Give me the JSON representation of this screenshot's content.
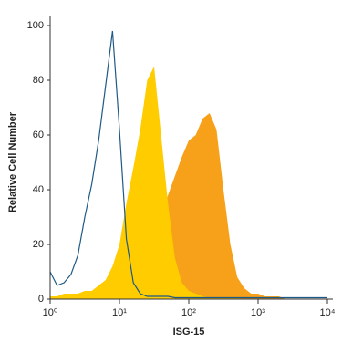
{
  "chart_data": {
    "type": "area",
    "x_label": "ISG-15",
    "y_label": "Relative Cell Number",
    "x_scale": "log",
    "x": [
      1,
      1.259,
      1.585,
      1.995,
      2.512,
      3.162,
      3.981,
      5.012,
      6.31,
      7.943,
      10,
      12.59,
      15.85,
      19.95,
      25.12,
      31.62,
      39.81,
      50.12,
      63.1,
      79.43,
      100,
      125.9,
      158.5,
      199.5,
      251.2,
      316.2,
      398.1,
      501.2,
      631,
      794.3,
      1000,
      1259,
      1585,
      1995,
      2512,
      3162,
      3981,
      5012,
      6310,
      7943,
      10000
    ],
    "series": [
      {
        "color": "#f7a11a",
        "fill": true,
        "values": [
          1,
          1,
          1,
          1,
          1,
          1,
          1.5,
          2,
          2,
          2.5,
          3,
          5,
          8,
          12,
          16,
          22,
          30,
          38,
          45,
          52,
          58,
          60,
          66,
          68,
          62,
          40,
          20,
          8,
          4,
          2,
          2,
          1,
          1,
          1,
          0,
          0,
          0,
          0,
          0,
          0,
          0
        ]
      },
      {
        "color": "#ffcc00",
        "fill": true,
        "values": [
          1,
          1,
          2,
          2,
          2,
          3,
          3,
          5,
          7,
          12,
          20,
          35,
          48,
          62,
          80,
          85,
          60,
          35,
          15,
          6,
          3,
          2,
          1,
          0.5,
          0.5,
          0.5,
          0.5,
          0.5,
          0,
          0,
          0,
          0,
          0,
          0,
          0,
          0,
          0,
          0,
          0,
          0,
          0
        ]
      },
      {
        "color": "#1f5a85",
        "fill": false,
        "values": [
          10,
          5,
          6,
          9,
          16,
          30,
          42,
          58,
          78,
          98,
          62,
          22,
          6,
          2,
          1,
          1,
          1,
          1,
          0.5,
          0.5,
          0.5,
          0.5,
          0.5,
          0.5,
          0.5,
          0.5,
          0.5,
          0.5,
          0.5,
          0.5,
          0.5,
          0.5,
          0.5,
          0.5,
          0.5,
          0.5,
          0.5,
          0.5,
          0.5,
          0.5,
          0.5
        ]
      }
    ],
    "xlim": [
      1,
      10000
    ],
    "xticks": [
      {
        "value": 1,
        "label": "10⁰"
      },
      {
        "value": 10,
        "label": "10¹"
      },
      {
        "value": 100,
        "label": "10²"
      },
      {
        "value": 1000,
        "label": "10³"
      },
      {
        "value": 10000,
        "label": "10⁴"
      }
    ],
    "ylim": [
      0,
      100
    ],
    "yticks": [
      0,
      20,
      40,
      60,
      80,
      100
    ]
  }
}
